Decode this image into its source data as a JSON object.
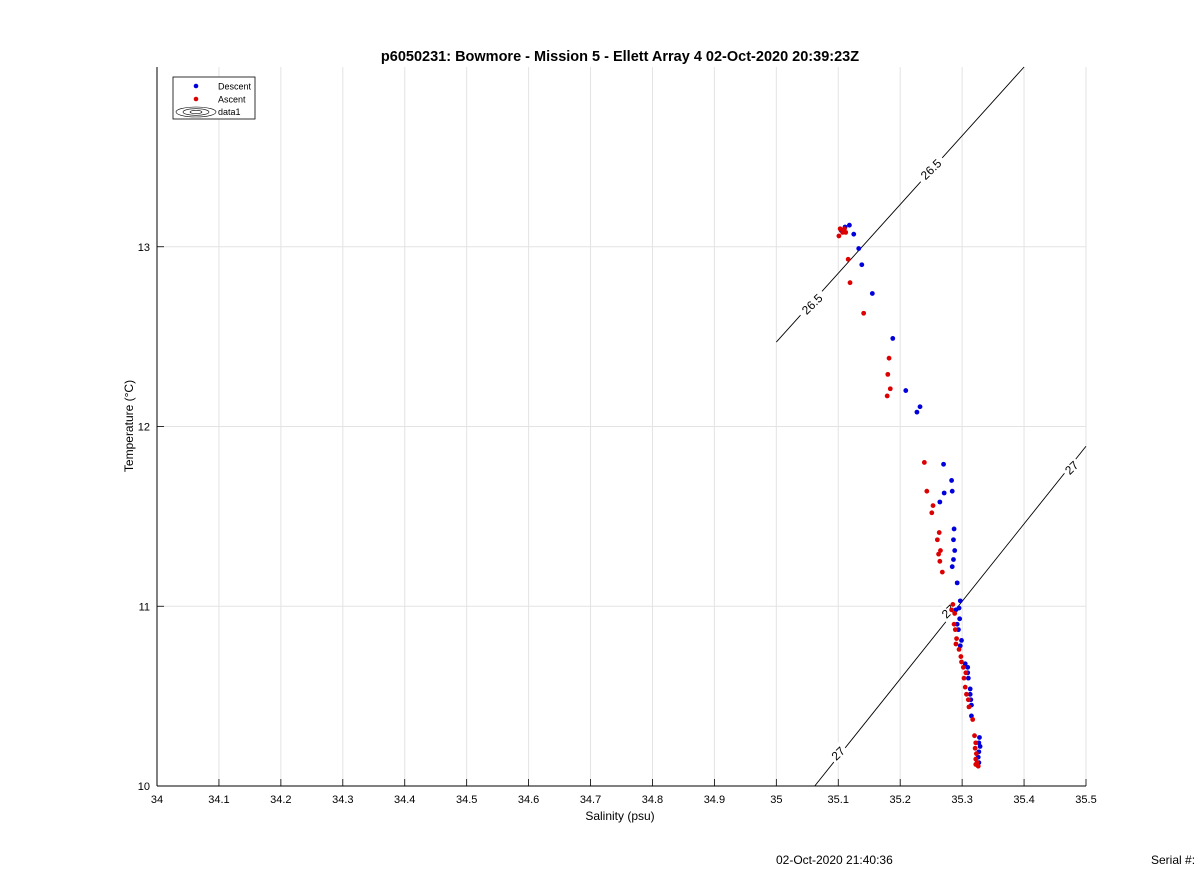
{
  "chart_data": {
    "type": "scatter",
    "title": "p6050231: Bowmore - Mission 5 - Ellett Array 4 02-Oct-2020 20:39:23Z",
    "xlabel": "Salinity (psu)",
    "ylabel": "Temperature (°C)",
    "xlim": [
      34,
      35.5
    ],
    "ylim": [
      10,
      14
    ],
    "xticks": [
      "34",
      "34.1",
      "34.2",
      "34.3",
      "34.4",
      "34.5",
      "34.6",
      "34.7",
      "34.8",
      "34.9",
      "35",
      "35.1",
      "35.2",
      "35.3",
      "35.4",
      "35.5"
    ],
    "yticks": [
      "10",
      "11",
      "12",
      "13"
    ],
    "grid": true,
    "legend": {
      "placement": "top-left",
      "entries": [
        "Descent",
        "Ascent",
        "data1"
      ]
    },
    "series": [
      {
        "name": "Descent",
        "color": "#0000dd",
        "points": [
          [
            35.111,
            13.11
          ],
          [
            35.118,
            13.12
          ],
          [
            35.105,
            13.09
          ],
          [
            35.125,
            13.07
          ],
          [
            35.133,
            12.99
          ],
          [
            35.138,
            12.9
          ],
          [
            35.155,
            12.74
          ],
          [
            35.188,
            12.49
          ],
          [
            35.209,
            12.2
          ],
          [
            35.227,
            12.08
          ],
          [
            35.232,
            12.11
          ],
          [
            35.27,
            11.79
          ],
          [
            35.283,
            11.7
          ],
          [
            35.284,
            11.64
          ],
          [
            35.271,
            11.63
          ],
          [
            35.264,
            11.58
          ],
          [
            35.287,
            11.43
          ],
          [
            35.286,
            11.37
          ],
          [
            35.288,
            11.31
          ],
          [
            35.286,
            11.26
          ],
          [
            35.284,
            11.22
          ],
          [
            35.292,
            11.13
          ],
          [
            35.297,
            11.03
          ],
          [
            35.295,
            10.99
          ],
          [
            35.29,
            10.98
          ],
          [
            35.296,
            10.93
          ],
          [
            35.292,
            10.9
          ],
          [
            35.294,
            10.87
          ],
          [
            35.299,
            10.81
          ],
          [
            35.297,
            10.78
          ],
          [
            35.305,
            10.68
          ],
          [
            35.309,
            10.66
          ],
          [
            35.309,
            10.63
          ],
          [
            35.31,
            10.6
          ],
          [
            35.313,
            10.54
          ],
          [
            35.313,
            10.51
          ],
          [
            35.314,
            10.48
          ],
          [
            35.315,
            10.45
          ],
          [
            35.315,
            10.39
          ],
          [
            35.328,
            10.27
          ],
          [
            35.327,
            10.24
          ],
          [
            35.329,
            10.22
          ],
          [
            35.327,
            10.19
          ],
          [
            35.326,
            10.16
          ],
          [
            35.327,
            10.13
          ]
        ]
      },
      {
        "name": "Ascent",
        "color": "#dd0000",
        "points": [
          [
            35.103,
            13.1
          ],
          [
            35.107,
            13.08
          ],
          [
            35.101,
            13.06
          ],
          [
            35.11,
            13.1
          ],
          [
            35.112,
            13.08
          ],
          [
            35.116,
            12.93
          ],
          [
            35.119,
            12.8
          ],
          [
            35.141,
            12.63
          ],
          [
            35.182,
            12.38
          ],
          [
            35.18,
            12.29
          ],
          [
            35.184,
            12.21
          ],
          [
            35.179,
            12.17
          ],
          [
            35.239,
            11.8
          ],
          [
            35.243,
            11.64
          ],
          [
            35.253,
            11.56
          ],
          [
            35.251,
            11.52
          ],
          [
            35.263,
            11.41
          ],
          [
            35.26,
            11.37
          ],
          [
            35.265,
            11.31
          ],
          [
            35.262,
            11.29
          ],
          [
            35.264,
            11.25
          ],
          [
            35.268,
            11.19
          ],
          [
            35.285,
            11.01
          ],
          [
            35.283,
            10.98
          ],
          [
            35.288,
            10.96
          ],
          [
            35.287,
            10.9
          ],
          [
            35.289,
            10.87
          ],
          [
            35.291,
            10.82
          ],
          [
            35.29,
            10.79
          ],
          [
            35.295,
            10.76
          ],
          [
            35.298,
            10.72
          ],
          [
            35.299,
            10.69
          ],
          [
            35.302,
            10.66
          ],
          [
            35.306,
            10.63
          ],
          [
            35.303,
            10.6
          ],
          [
            35.305,
            10.55
          ],
          [
            35.307,
            10.51
          ],
          [
            35.31,
            10.48
          ],
          [
            35.311,
            10.44
          ],
          [
            35.317,
            10.37
          ],
          [
            35.32,
            10.28
          ],
          [
            35.322,
            10.24
          ],
          [
            35.321,
            10.21
          ],
          [
            35.323,
            10.18
          ],
          [
            35.322,
            10.15
          ],
          [
            35.324,
            10.13
          ],
          [
            35.322,
            10.12
          ],
          [
            35.326,
            10.11
          ]
        ]
      }
    ],
    "contours": [
      {
        "name": "data1",
        "level": "26.5",
        "label": "26.5",
        "path": [
          [
            35.0,
            12.47
          ],
          [
            35.4,
            14.0
          ]
        ]
      },
      {
        "name": "data1",
        "level": "27",
        "label": "27",
        "path": [
          [
            35.062,
            10.0
          ],
          [
            35.5,
            11.89
          ]
        ]
      }
    ],
    "contour_labels": [
      {
        "text": "26.5",
        "x": 35.058,
        "y": 12.68
      },
      {
        "text": "26.5",
        "x": 35.25,
        "y": 13.43
      },
      {
        "text": "27",
        "x": 35.1,
        "y": 10.18
      },
      {
        "text": "27",
        "x": 35.278,
        "y": 10.97
      },
      {
        "text": "27",
        "x": 35.477,
        "y": 11.77
      }
    ]
  },
  "footer": {
    "timestamp": "02-Oct-2020 21:40:36",
    "serial_label": "Serial #:"
  }
}
